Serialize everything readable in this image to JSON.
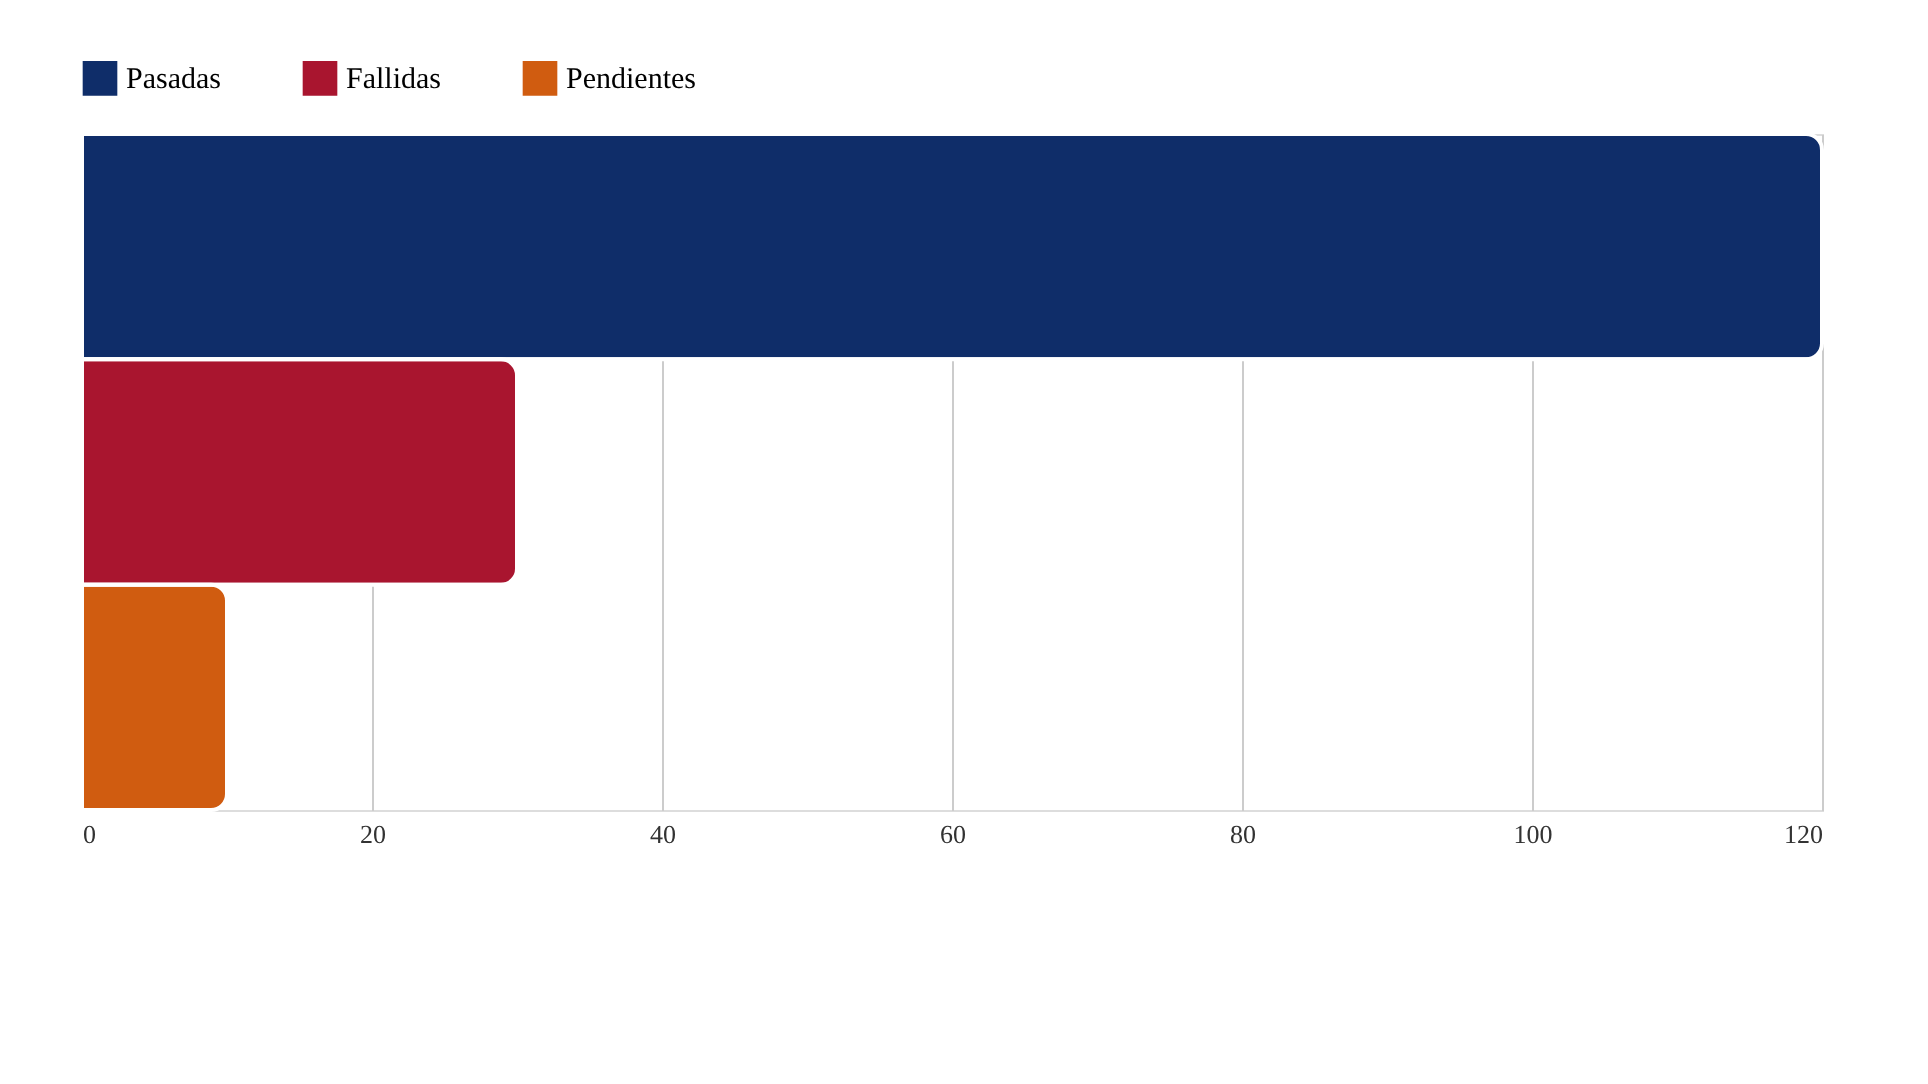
{
  "chart_data": {
    "type": "bar",
    "orientation": "horizontal",
    "categories": [
      null
    ],
    "series": [
      {
        "name": "Pasadas",
        "color": "#0f2d69",
        "values": [
          120
        ]
      },
      {
        "name": "Fallidas",
        "color": "#a9152f",
        "values": [
          30
        ]
      },
      {
        "name": "Pendientes",
        "color": "#d05c10",
        "values": [
          10
        ]
      }
    ],
    "xlim": [
      0,
      120
    ],
    "xticks": [
      0,
      20,
      40,
      60,
      80,
      100,
      120
    ],
    "grid": "x",
    "legend": "top"
  }
}
